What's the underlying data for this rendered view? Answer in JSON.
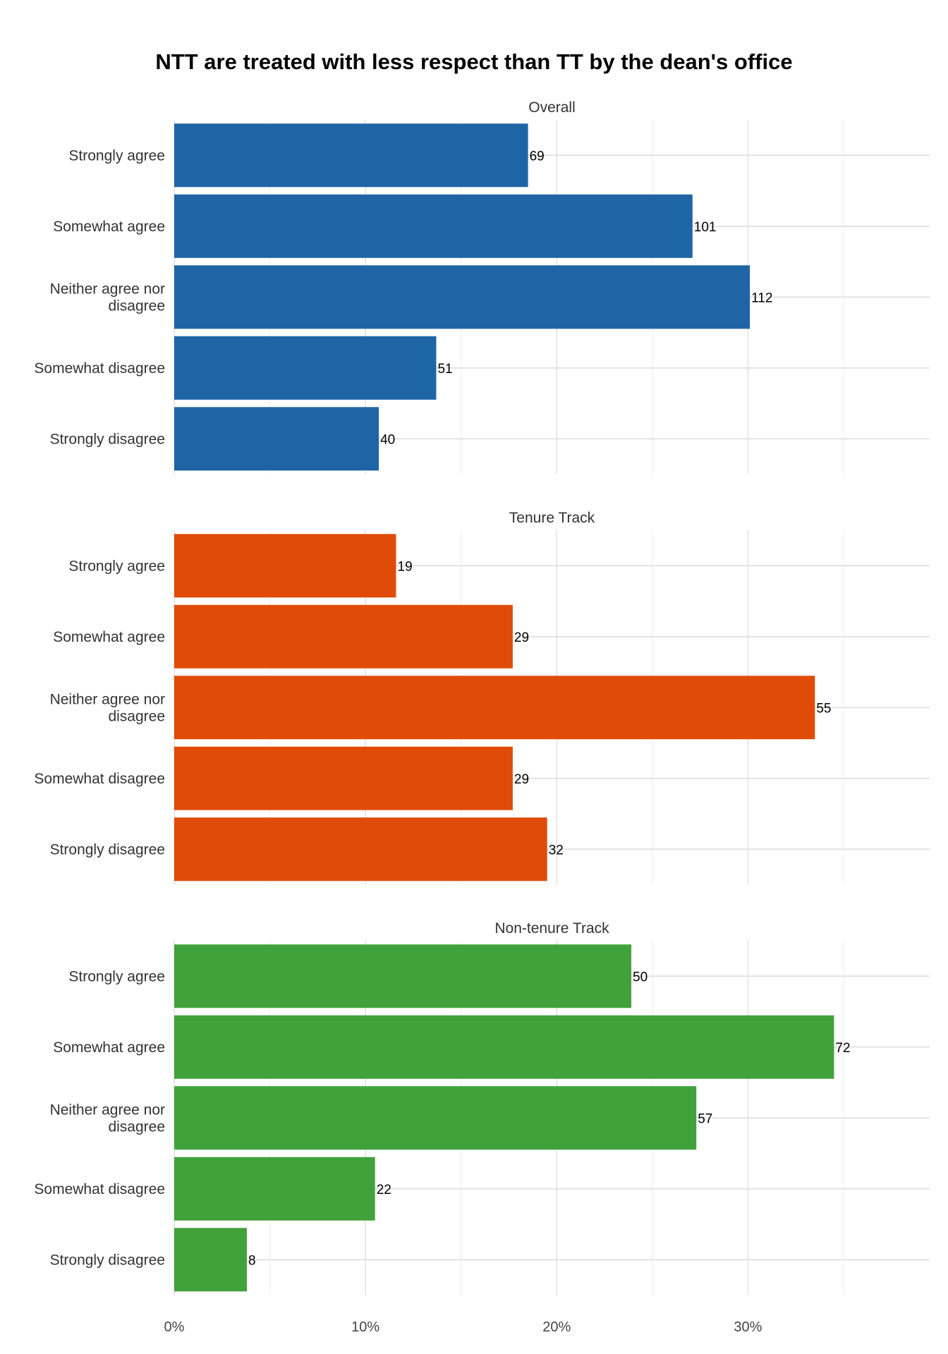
{
  "chart_data": {
    "type": "bar",
    "orientation": "horizontal",
    "title": "NTT are treated with less respect than TT by the dean's office",
    "xlabel": "",
    "ylabel": "",
    "xlim": [
      0,
      0.395
    ],
    "x_ticks": [
      {
        "value": 0,
        "label": "0%"
      },
      {
        "value": 0.1,
        "label": "10%"
      },
      {
        "value": 0.2,
        "label": "20%"
      },
      {
        "value": 0.3,
        "label": "30%"
      }
    ],
    "grid": true,
    "legend": "none",
    "categories": [
      "Strongly agree",
      "Somewhat agree",
      "Neither agree nor disagree",
      "Somewhat disagree",
      "Strongly disagree"
    ],
    "category_display": [
      [
        "Strongly agree"
      ],
      [
        "Somewhat agree"
      ],
      [
        "Neither agree nor",
        "disagree"
      ],
      [
        "Somewhat disagree"
      ],
      [
        "Strongly disagree"
      ]
    ],
    "panels": [
      {
        "name": "Overall",
        "color": "#1f65a6",
        "values": [
          0.185,
          0.271,
          0.301,
          0.137,
          0.107
        ],
        "counts": [
          "69",
          "101",
          "112",
          "51",
          "40"
        ]
      },
      {
        "name": "Tenure Track",
        "color": "#e04c08",
        "values": [
          0.116,
          0.177,
          0.335,
          0.177,
          0.195
        ],
        "counts": [
          "19",
          "29",
          "55",
          "29",
          "32"
        ]
      },
      {
        "name": "Non-tenure Track",
        "color": "#41a23b",
        "values": [
          0.239,
          0.345,
          0.273,
          0.105,
          0.038
        ],
        "counts": [
          "50",
          "72",
          "57",
          "22",
          "8"
        ]
      }
    ]
  }
}
